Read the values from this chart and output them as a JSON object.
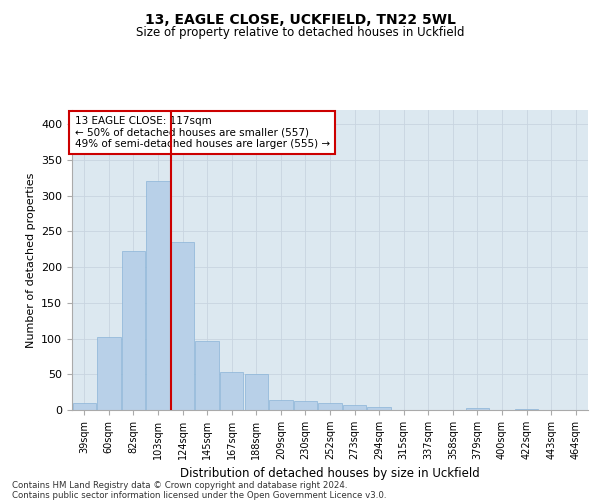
{
  "title1": "13, EAGLE CLOSE, UCKFIELD, TN22 5WL",
  "title2": "Size of property relative to detached houses in Uckfield",
  "xlabel": "Distribution of detached houses by size in Uckfield",
  "ylabel": "Number of detached properties",
  "bin_labels": [
    "39sqm",
    "60sqm",
    "82sqm",
    "103sqm",
    "124sqm",
    "145sqm",
    "167sqm",
    "188sqm",
    "209sqm",
    "230sqm",
    "252sqm",
    "273sqm",
    "294sqm",
    "315sqm",
    "337sqm",
    "358sqm",
    "379sqm",
    "400sqm",
    "422sqm",
    "443sqm",
    "464sqm"
  ],
  "bar_values": [
    10,
    102,
    222,
    320,
    235,
    97,
    53,
    51,
    14,
    13,
    10,
    7,
    4,
    0,
    0,
    0,
    3,
    0,
    2,
    0,
    0
  ],
  "bar_color": "#b8d0e8",
  "bar_edge_color": "#8ab4d8",
  "grid_color": "#c8d4e0",
  "background_color": "#dce8f0",
  "vline_x_index": 3.52,
  "vline_color": "#cc0000",
  "annotation_line1": "13 EAGLE CLOSE: 117sqm",
  "annotation_line2": "← 50% of detached houses are smaller (557)",
  "annotation_line3": "49% of semi-detached houses are larger (555) →",
  "annotation_box_color": "#ffffff",
  "annotation_box_edge": "#cc0000",
  "ylim": [
    0,
    420
  ],
  "yticks": [
    0,
    50,
    100,
    150,
    200,
    250,
    300,
    350,
    400
  ],
  "footnote1": "Contains HM Land Registry data © Crown copyright and database right 2024.",
  "footnote2": "Contains public sector information licensed under the Open Government Licence v3.0."
}
